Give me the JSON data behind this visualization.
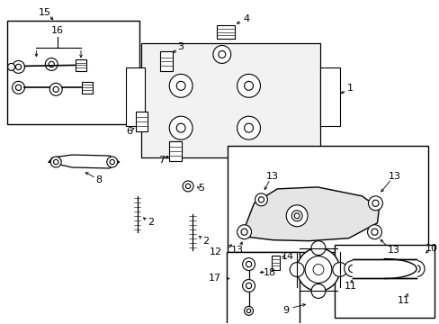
{
  "bg_color": "#ffffff",
  "lc": "#000000",
  "fig_width": 4.89,
  "fig_height": 3.6,
  "dpi": 100
}
